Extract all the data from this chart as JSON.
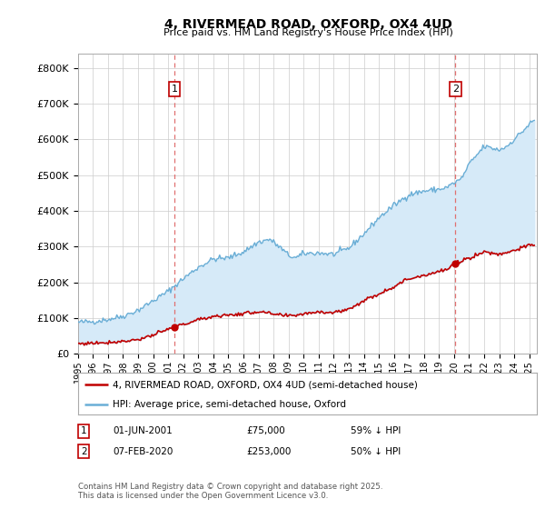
{
  "title": "4, RIVERMEAD ROAD, OXFORD, OX4 4UD",
  "subtitle": "Price paid vs. HM Land Registry's House Price Index (HPI)",
  "legend_line1": "4, RIVERMEAD ROAD, OXFORD, OX4 4UD (semi-detached house)",
  "legend_line2": "HPI: Average price, semi-detached house, Oxford",
  "footer": "Contains HM Land Registry data © Crown copyright and database right 2025.\nThis data is licensed under the Open Government Licence v3.0.",
  "purchase1_date": "01-JUN-2001",
  "purchase1_price": 75000,
  "purchase1_label": "59% ↓ HPI",
  "purchase2_date": "07-FEB-2020",
  "purchase2_price": 253000,
  "purchase2_label": "50% ↓ HPI",
  "xlim": [
    1995.0,
    2025.5
  ],
  "ylim": [
    0,
    840000
  ],
  "yticks": [
    0,
    100000,
    200000,
    300000,
    400000,
    500000,
    600000,
    700000,
    800000
  ],
  "xticks": [
    1995,
    1996,
    1997,
    1998,
    1999,
    2000,
    2001,
    2002,
    2003,
    2004,
    2005,
    2006,
    2007,
    2008,
    2009,
    2010,
    2011,
    2012,
    2013,
    2014,
    2015,
    2016,
    2017,
    2018,
    2019,
    2020,
    2021,
    2022,
    2023,
    2024,
    2025
  ],
  "hpi_color": "#6aaed6",
  "hpi_fill_color": "#d6eaf8",
  "price_color": "#c00000",
  "vline_color": "#e07070",
  "marker1_x": 2001.42,
  "marker2_x": 2020.08,
  "bg_color": "#ffffff",
  "grid_color": "#cccccc",
  "hpi_anchors_t": [
    1995.0,
    1996.0,
    1997.0,
    1998.0,
    1999.0,
    2000.0,
    2001.0,
    2002.0,
    2003.0,
    2004.0,
    2005.0,
    2006.0,
    2007.0,
    2007.75,
    2008.5,
    2009.0,
    2009.5,
    2010.0,
    2011.0,
    2012.0,
    2013.0,
    2014.0,
    2015.0,
    2016.0,
    2017.0,
    2018.0,
    2019.0,
    2019.5,
    2020.5,
    2021.0,
    2022.0,
    2022.5,
    2023.0,
    2023.5,
    2024.0,
    2024.5,
    2025.2
  ],
  "hpi_anchors_v": [
    88000,
    90000,
    96000,
    105000,
    122000,
    148000,
    175000,
    210000,
    242000,
    265000,
    268000,
    285000,
    312000,
    320000,
    295000,
    275000,
    268000,
    280000,
    282000,
    278000,
    295000,
    335000,
    380000,
    415000,
    445000,
    455000,
    460000,
    465000,
    490000,
    530000,
    580000,
    575000,
    570000,
    580000,
    600000,
    620000,
    650000
  ],
  "price_anchors_t": [
    1995.0,
    1996.0,
    1997.0,
    1998.0,
    1999.0,
    2000.0,
    2001.0,
    2001.42,
    2002.0,
    2003.0,
    2004.0,
    2005.0,
    2006.0,
    2007.0,
    2008.0,
    2009.0,
    2010.0,
    2011.0,
    2012.0,
    2013.0,
    2014.0,
    2015.0,
    2016.0,
    2017.0,
    2018.0,
    2019.0,
    2019.5,
    2020.08,
    2020.5,
    2021.0,
    2022.0,
    2022.5,
    2023.0,
    2024.0,
    2025.2
  ],
  "price_anchors_v": [
    28000,
    30000,
    32000,
    35000,
    40000,
    52000,
    68000,
    75000,
    82000,
    95000,
    105000,
    108000,
    112000,
    118000,
    110000,
    105000,
    112000,
    118000,
    115000,
    125000,
    148000,
    168000,
    188000,
    210000,
    220000,
    230000,
    235000,
    253000,
    260000,
    268000,
    285000,
    282000,
    278000,
    290000,
    305000
  ]
}
